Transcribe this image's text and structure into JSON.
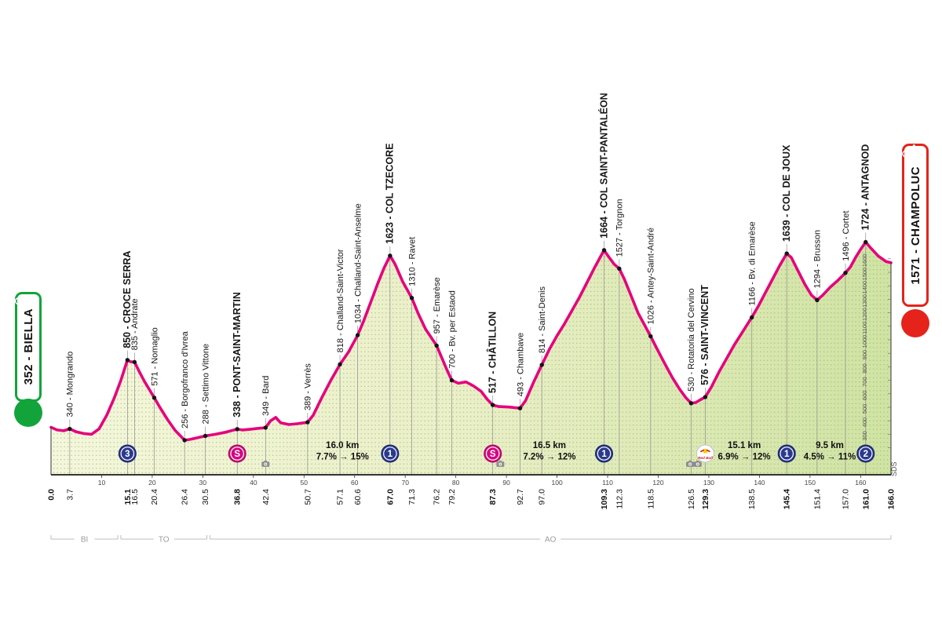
{
  "signature": "SDS",
  "start_badge": {
    "label": "352 - BIELLA",
    "color": "#12a43b"
  },
  "finish_badge": {
    "label": "1571 - CHAMPOLUC",
    "color": "#e5231b"
  },
  "colors": {
    "profile_line": "#e5007d",
    "fill_light": "#f4f7db",
    "fill_mid": "#e9efc6",
    "fill_dark": "#cfe3a2",
    "cat_marker": "#2c3a8c",
    "cat_marker_edge": "#161f63",
    "sprint_marker": "#d4087e",
    "sprint_marker_edge": "#9b0559",
    "redbull_red": "#cc1e2c",
    "redbull_yellow": "#ffcc00",
    "axis": "#1a1a1a",
    "gridline": "#8f8f8f"
  },
  "chart_data": {
    "type": "area",
    "x_unit": "km",
    "y_unit": "m",
    "x_range": [
      0,
      166
    ],
    "y_range": [
      0,
      1800
    ],
    "x_axis_ticks": [
      10,
      20,
      30,
      40,
      50,
      60,
      70,
      80,
      90,
      100,
      110,
      120,
      130,
      140,
      150,
      160
    ],
    "y_axis_ticks": [
      200,
      300,
      400,
      500,
      600,
      700,
      800,
      900,
      1000,
      1100,
      1200,
      1300,
      1400,
      1500,
      1600
    ],
    "redbull_label": "Red Bull",
    "marker_glyphs": {
      "cat1": "1",
      "cat2": "2",
      "cat3": "3",
      "sprint": "S"
    },
    "profile": [
      [
        0,
        352
      ],
      [
        1.2,
        332
      ],
      [
        2.5,
        326
      ],
      [
        3.7,
        340
      ],
      [
        5,
        318
      ],
      [
        6.5,
        305
      ],
      [
        8,
        300
      ],
      [
        9.5,
        340
      ],
      [
        11,
        440
      ],
      [
        12.5,
        570
      ],
      [
        13.8,
        700
      ],
      [
        15.1,
        850
      ],
      [
        15.7,
        838
      ],
      [
        16.5,
        835
      ],
      [
        17.5,
        760
      ],
      [
        18.5,
        690
      ],
      [
        20.4,
        571
      ],
      [
        21.5,
        500
      ],
      [
        23,
        410
      ],
      [
        24.5,
        330
      ],
      [
        26.4,
        256
      ],
      [
        27.5,
        262
      ],
      [
        29,
        275
      ],
      [
        30.5,
        288
      ],
      [
        32.5,
        300
      ],
      [
        34.5,
        315
      ],
      [
        36.8,
        338
      ],
      [
        37.8,
        332
      ],
      [
        39.5,
        338
      ],
      [
        41,
        344
      ],
      [
        42.4,
        349
      ],
      [
        43.4,
        400
      ],
      [
        44.4,
        425
      ],
      [
        45.4,
        385
      ],
      [
        47,
        372
      ],
      [
        48.6,
        378
      ],
      [
        50.7,
        389
      ],
      [
        51.8,
        440
      ],
      [
        53.5,
        570
      ],
      [
        55.3,
        700
      ],
      [
        57.1,
        818
      ],
      [
        58.8,
        910
      ],
      [
        60.6,
        1034
      ],
      [
        61.8,
        1140
      ],
      [
        63.2,
        1280
      ],
      [
        64.6,
        1420
      ],
      [
        65.8,
        1530
      ],
      [
        67,
        1623
      ],
      [
        68,
        1560
      ],
      [
        69.5,
        1430
      ],
      [
        71.3,
        1310
      ],
      [
        72.5,
        1200
      ],
      [
        74,
        1080
      ],
      [
        76.2,
        957
      ],
      [
        77.3,
        860
      ],
      [
        78.2,
        780
      ],
      [
        79.2,
        700
      ],
      [
        80.5,
        678
      ],
      [
        82,
        688
      ],
      [
        83.5,
        658
      ],
      [
        85,
        618
      ],
      [
        86.2,
        560
      ],
      [
        87.3,
        517
      ],
      [
        88.5,
        505
      ],
      [
        90.5,
        502
      ],
      [
        92.7,
        493
      ],
      [
        93.8,
        550
      ],
      [
        95.3,
        680
      ],
      [
        97,
        814
      ],
      [
        98.5,
        930
      ],
      [
        100,
        1030
      ],
      [
        101.5,
        1120
      ],
      [
        103,
        1220
      ],
      [
        104.5,
        1320
      ],
      [
        106,
        1430
      ],
      [
        107.5,
        1540
      ],
      [
        109.3,
        1664
      ],
      [
        110.3,
        1610
      ],
      [
        111.3,
        1560
      ],
      [
        112.3,
        1527
      ],
      [
        113.3,
        1450
      ],
      [
        114.5,
        1340
      ],
      [
        116,
        1200
      ],
      [
        117.3,
        1110
      ],
      [
        118.5,
        1026
      ],
      [
        119.8,
        930
      ],
      [
        121.2,
        830
      ],
      [
        122.8,
        720
      ],
      [
        124.3,
        630
      ],
      [
        125.5,
        570
      ],
      [
        126.5,
        530
      ],
      [
        127.4,
        535
      ],
      [
        128.3,
        555
      ],
      [
        129.3,
        576
      ],
      [
        130.5,
        650
      ],
      [
        132,
        760
      ],
      [
        133.5,
        860
      ],
      [
        135,
        960
      ],
      [
        136.7,
        1060
      ],
      [
        138.5,
        1166
      ],
      [
        139.8,
        1250
      ],
      [
        141.2,
        1350
      ],
      [
        142.6,
        1450
      ],
      [
        144,
        1550
      ],
      [
        145.4,
        1639
      ],
      [
        146.3,
        1610
      ],
      [
        147.5,
        1520
      ],
      [
        149,
        1410
      ],
      [
        150.3,
        1330
      ],
      [
        151.4,
        1294
      ],
      [
        152.5,
        1330
      ],
      [
        154,
        1390
      ],
      [
        155.5,
        1440
      ],
      [
        157,
        1496
      ],
      [
        158,
        1540
      ],
      [
        159,
        1610
      ],
      [
        160,
        1670
      ],
      [
        161,
        1724
      ],
      [
        162,
        1680
      ],
      [
        163.5,
        1620
      ],
      [
        165,
        1580
      ],
      [
        166,
        1571
      ]
    ],
    "points": [
      {
        "km": 3.7,
        "elev": 340,
        "label": "340 - Mongrando",
        "major": false,
        "marker": null
      },
      {
        "km": 15.1,
        "elev": 850,
        "label": "850 - CROCE SERRA",
        "major": true,
        "marker": "cat3"
      },
      {
        "km": 16.5,
        "elev": 835,
        "label": "835 - Andrate",
        "major": false,
        "marker": null
      },
      {
        "km": 20.4,
        "elev": 571,
        "label": "571 - Nomaglio",
        "major": false,
        "marker": null
      },
      {
        "km": 26.4,
        "elev": 256,
        "label": "256 - Borgofranco d'Ivrea",
        "major": false,
        "marker": null
      },
      {
        "km": 30.5,
        "elev": 288,
        "label": "288 - Settimo Vittone",
        "major": false,
        "marker": null
      },
      {
        "km": 36.8,
        "elev": 338,
        "label": "338 - PONT-SAINT-MARTIN",
        "major": true,
        "marker": "sprint"
      },
      {
        "km": 42.4,
        "elev": 349,
        "label": "349 - Bard",
        "major": false,
        "marker": null
      },
      {
        "km": 50.7,
        "elev": 389,
        "label": "389 - Verrès",
        "major": false,
        "marker": null
      },
      {
        "km": 57.1,
        "elev": 818,
        "label": "818 - Challand-Saint-Victor",
        "major": false,
        "marker": null
      },
      {
        "km": 60.6,
        "elev": 1034,
        "label": "1034 - Challand-Saint-Anselme",
        "major": false,
        "marker": null
      },
      {
        "km": 67.0,
        "elev": 1623,
        "label": "1623 - COL TZECORE",
        "major": true,
        "marker": "cat1"
      },
      {
        "km": 71.3,
        "elev": 1310,
        "label": "1310 - Ravet",
        "major": false,
        "marker": null
      },
      {
        "km": 76.2,
        "elev": 957,
        "label": "957 - Emarèse",
        "major": false,
        "marker": null
      },
      {
        "km": 79.2,
        "elev": 700,
        "label": "700 - Bv. per Estaod",
        "major": false,
        "marker": null
      },
      {
        "km": 87.3,
        "elev": 517,
        "label": "517 - CHÂTILLON",
        "major": true,
        "marker": "sprint"
      },
      {
        "km": 92.7,
        "elev": 493,
        "label": "493 - Chambave",
        "major": false,
        "marker": null
      },
      {
        "km": 97.0,
        "elev": 814,
        "label": "814 - Saint-Denis",
        "major": false,
        "marker": null
      },
      {
        "km": 109.3,
        "elev": 1664,
        "label": "1664 - COL SAINT-PANTALÉON",
        "major": true,
        "marker": "cat1"
      },
      {
        "km": 112.3,
        "elev": 1527,
        "label": "1527 - Torgnon",
        "major": false,
        "marker": null
      },
      {
        "km": 118.5,
        "elev": 1026,
        "label": "1026 - Antey-Saint-André",
        "major": false,
        "marker": null
      },
      {
        "km": 126.5,
        "elev": 530,
        "label": "530 - Rotatoria del Cervino",
        "major": false,
        "marker": null
      },
      {
        "km": 129.3,
        "elev": 576,
        "label": "576 - SAINT-VINCENT",
        "major": true,
        "marker": "redbull"
      },
      {
        "km": 138.5,
        "elev": 1166,
        "label": "1166 - Bv. di Emarèse",
        "major": false,
        "marker": null
      },
      {
        "km": 145.4,
        "elev": 1639,
        "label": "1639 - COL DE JOUX",
        "major": true,
        "marker": "cat1"
      },
      {
        "km": 151.4,
        "elev": 1294,
        "label": "1294 - Brusson",
        "major": false,
        "marker": null
      },
      {
        "km": 157.0,
        "elev": 1496,
        "label": "1496 - Cortet",
        "major": false,
        "marker": null
      },
      {
        "km": 161.0,
        "elev": 1724,
        "label": "1724 - ANTAGNOD",
        "major": true,
        "marker": "cat2"
      }
    ],
    "camera_points": [
      {
        "km": 42.4
      },
      {
        "km": 88.8
      },
      {
        "km": 126.3
      },
      {
        "km": 127.8
      }
    ],
    "climbs": [
      {
        "km": 57.6,
        "length": "16.0 km",
        "gradient": "7.7% → 15%"
      },
      {
        "km": 98.5,
        "length": "16.5 km",
        "gradient": "7.2% → 12%"
      },
      {
        "km": 137.0,
        "length": "15.1 km",
        "gradient": "6.9% → 12%"
      },
      {
        "km": 153.9,
        "length": "9.5 km",
        "gradient": "4.5% → 11%"
      }
    ],
    "distance_labels": [
      {
        "km": 0.0,
        "text": "0.0",
        "bold": true
      },
      {
        "km": 3.7,
        "text": "3.7",
        "bold": false
      },
      {
        "km": 15.1,
        "text": "15.1",
        "bold": true
      },
      {
        "km": 16.5,
        "text": "16.5",
        "bold": false
      },
      {
        "km": 20.4,
        "text": "20.4",
        "bold": false
      },
      {
        "km": 26.4,
        "text": "26.4",
        "bold": false
      },
      {
        "km": 30.5,
        "text": "30.5",
        "bold": false
      },
      {
        "km": 36.8,
        "text": "36.8",
        "bold": true
      },
      {
        "km": 42.4,
        "text": "42.4",
        "bold": false
      },
      {
        "km": 50.7,
        "text": "50.7",
        "bold": false
      },
      {
        "km": 57.1,
        "text": "57.1",
        "bold": false
      },
      {
        "km": 60.6,
        "text": "60.6",
        "bold": false
      },
      {
        "km": 67.0,
        "text": "67.0",
        "bold": true
      },
      {
        "km": 71.3,
        "text": "71.3",
        "bold": false
      },
      {
        "km": 76.2,
        "text": "76.2",
        "bold": false
      },
      {
        "km": 79.2,
        "text": "79.2",
        "bold": false
      },
      {
        "km": 87.3,
        "text": "87.3",
        "bold": true
      },
      {
        "km": 92.7,
        "text": "92.7",
        "bold": false
      },
      {
        "km": 97.0,
        "text": "97.0",
        "bold": false
      },
      {
        "km": 109.3,
        "text": "109.3",
        "bold": true
      },
      {
        "km": 112.3,
        "text": "112.3",
        "bold": false
      },
      {
        "km": 118.5,
        "text": "118.5",
        "bold": false
      },
      {
        "km": 126.5,
        "text": "126.5",
        "bold": false
      },
      {
        "km": 129.3,
        "text": "129.3",
        "bold": true
      },
      {
        "km": 138.5,
        "text": "138.5",
        "bold": false
      },
      {
        "km": 145.4,
        "text": "145.4",
        "bold": true
      },
      {
        "km": 151.4,
        "text": "151.4",
        "bold": false
      },
      {
        "km": 157.0,
        "text": "157.0",
        "bold": false
      },
      {
        "km": 161.0,
        "text": "161.0",
        "bold": true
      },
      {
        "km": 166.0,
        "text": "166.0",
        "bold": true
      }
    ],
    "provinces": [
      {
        "label": "BI",
        "from": 0,
        "to": 13.2
      },
      {
        "label": "TO",
        "from": 13.8,
        "to": 30.8
      },
      {
        "label": "AO",
        "from": 31.4,
        "to": 166
      }
    ]
  }
}
